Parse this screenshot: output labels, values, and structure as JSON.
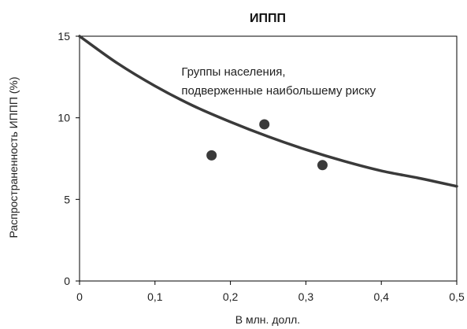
{
  "chart_data": {
    "type": "scatter",
    "title": "ИППП",
    "xlabel": "В млн. долл.",
    "ylabel": "Распространенность ИППП (%)",
    "xlim": [
      0,
      0.5
    ],
    "ylim": [
      0,
      15
    ],
    "x_ticks": [
      "0",
      "0,1",
      "0,2",
      "0,3",
      "0,4",
      "0,5"
    ],
    "y_ticks": [
      "0",
      "5",
      "10",
      "15"
    ],
    "grid": false,
    "series": [
      {
        "kind": "line",
        "x": [
          0,
          0.05,
          0.1,
          0.15,
          0.2,
          0.25,
          0.3,
          0.35,
          0.4,
          0.45,
          0.5
        ],
        "y": [
          15,
          13.35,
          11.95,
          10.75,
          9.75,
          8.85,
          8.05,
          7.35,
          6.75,
          6.3,
          5.8
        ]
      },
      {
        "kind": "points",
        "x": [
          0.175,
          0.245,
          0.322
        ],
        "y": [
          7.7,
          9.6,
          7.1
        ]
      }
    ],
    "annotation": {
      "lines": [
        "Группы населения,",
        "подверженные наибольшему риску"
      ],
      "x": 0.135,
      "y": 12.6
    }
  },
  "colors": {
    "curve": "#3a3a3a",
    "points": "#3a3a3a",
    "axis": "#000000",
    "text": "#222222"
  }
}
